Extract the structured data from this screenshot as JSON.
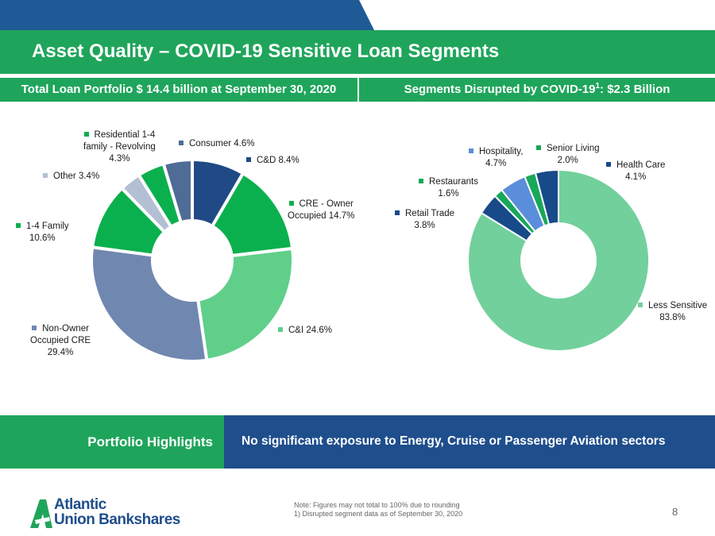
{
  "title": "Asset Quality – COVID-19 Sensitive Loan Segments",
  "subheader": {
    "left": "Total Loan Portfolio $ 14.4 billion at September 30, 2020",
    "right_prefix": "Segments Disrupted by COVID-19",
    "right_sup": "1",
    "right_suffix": ": $2.3 Billion"
  },
  "colors": {
    "green": "#1fa55b",
    "navy": "#1f4e8c",
    "dark_navy": "#1f3f73",
    "bright_green": "#0bb04e",
    "light_green": "#5fcf8a",
    "mint": "#72d09c",
    "slate": "#7088b0",
    "light_gray_blue": "#b3bfd3",
    "slate_blue": "#4f6c96",
    "sky_blue": "#5a8edb"
  },
  "chart_data": [
    {
      "type": "pie",
      "title": "Total Loan Portfolio $ 14.4 billion at September 30, 2020",
      "slices": [
        {
          "lines": [
            "C&D 8.4%"
          ],
          "value": 8.4,
          "color": "#1f4a85"
        },
        {
          "lines": [
            "CRE - Owner",
            "Occupied 14.7%"
          ],
          "value": 14.7,
          "color": "#0bb04e"
        },
        {
          "lines": [
            "C&I 24.6%"
          ],
          "value": 24.6,
          "color": "#5fcf8a"
        },
        {
          "lines": [
            "Non-Owner",
            "Occupied CRE",
            "29.4%"
          ],
          "value": 29.4,
          "color": "#7088b0"
        },
        {
          "lines": [
            "1-4 Family",
            "10.6%"
          ],
          "value": 10.6,
          "color": "#0bb04e"
        },
        {
          "lines": [
            "Other 3.4%"
          ],
          "value": 3.4,
          "color": "#b3bfd3"
        },
        {
          "lines": [
            "Residential 1-4",
            "family - Revolving",
            "4.3%"
          ],
          "value": 4.3,
          "color": "#0bb04e"
        },
        {
          "lines": [
            "Consumer 4.6%"
          ],
          "value": 4.6,
          "color": "#4f6c96"
        }
      ]
    },
    {
      "type": "pie",
      "title": "Segments Disrupted by COVID-19: $2.3 Billion",
      "slices": [
        {
          "lines": [
            "Less Sensitive",
            "83.8%"
          ],
          "value": 83.8,
          "color": "#72d09c"
        },
        {
          "lines": [
            "Retail Trade",
            "3.8%"
          ],
          "value": 3.8,
          "color": "#184a8a"
        },
        {
          "lines": [
            "Restaurants",
            "1.6%"
          ],
          "value": 1.6,
          "color": "#18a85a"
        },
        {
          "lines": [
            "Hospitality,",
            "4.7%"
          ],
          "value": 4.7,
          "color": "#5a8edb"
        },
        {
          "lines": [
            "Senior Living",
            "2.0%"
          ],
          "value": 2.0,
          "color": "#18a85a"
        },
        {
          "lines": [
            "Health Care",
            "4.1%"
          ],
          "value": 4.1,
          "color": "#184a8a"
        }
      ]
    }
  ],
  "highlights": {
    "label": "Portfolio Highlights",
    "text": "No significant exposure to Energy, Cruise or Passenger Aviation sectors"
  },
  "logo": {
    "line1": "Atlantic",
    "line2": "Union Bankshares"
  },
  "notes": [
    "Note: Figures may not total to 100% due to rounding",
    "1) Disrupted segment data as of September 30, 2020"
  ],
  "page_number": "8"
}
